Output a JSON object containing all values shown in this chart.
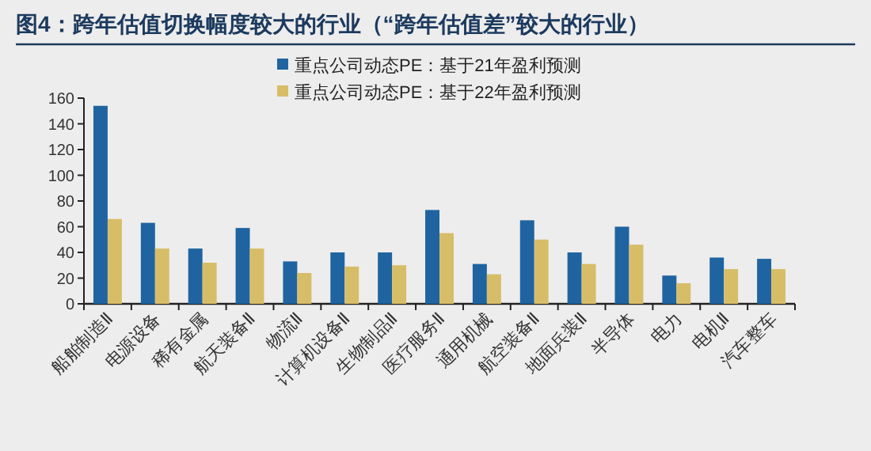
{
  "chart_data": {
    "type": "bar",
    "title": "图4：跨年估值切换幅度较大的行业（“跨年估值差”较大的行业）",
    "categories": [
      "船舶制造Ⅱ",
      "电源设备",
      "稀有金属",
      "航天装备Ⅱ",
      "物流Ⅱ",
      "计算机设备Ⅱ",
      "生物制品Ⅱ",
      "医疗服务Ⅱ",
      "通用机械",
      "航空装备Ⅱ",
      "地面兵装Ⅱ",
      "半导体",
      "电力",
      "电机Ⅱ",
      "汽车整车"
    ],
    "series": [
      {
        "name": "重点公司动态PE：基于21年盈利预测",
        "color": "#1f64a0",
        "values": [
          154,
          63,
          43,
          59,
          33,
          40,
          40,
          73,
          31,
          65,
          40,
          60,
          22,
          36,
          35
        ]
      },
      {
        "name": "重点公司动态PE：基于22年盈利预测",
        "color": "#d8bd68",
        "values": [
          66,
          43,
          32,
          43,
          24,
          29,
          30,
          55,
          23,
          50,
          31,
          46,
          16,
          27,
          27
        ]
      }
    ],
    "ylim": [
      0,
      160
    ],
    "yticks": [
      0,
      20,
      40,
      60,
      80,
      100,
      120,
      140,
      160
    ],
    "grid": false,
    "legend": "top"
  }
}
